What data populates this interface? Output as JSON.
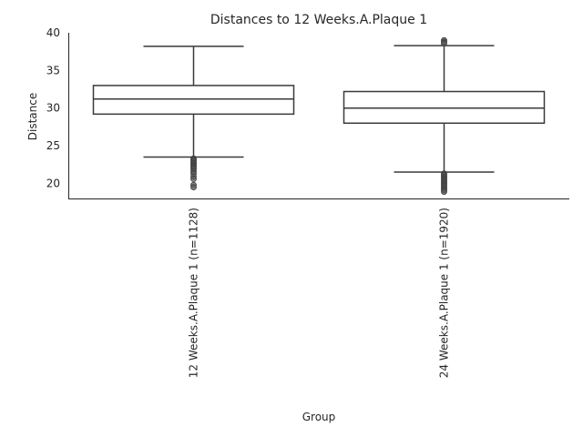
{
  "chart_data": {
    "type": "box",
    "title": "Distances to 12 Weeks.A.Plaque 1",
    "xlabel": "Group",
    "ylabel": "Distance",
    "ylim": [
      18,
      40
    ],
    "yticks": [
      20,
      25,
      30,
      35,
      40
    ],
    "grid": false,
    "categories": [
      "12 Weeks.A.Plaque 1 (n=1128)",
      "24 Weeks.A.Plaque 1 (n=1920)"
    ],
    "boxes": [
      {
        "whisker_low": 23.5,
        "q1": 29.2,
        "median": 31.2,
        "q3": 33.0,
        "whisker_high": 38.2,
        "fliers": [
          23.3,
          23.1,
          22.9,
          22.7,
          22.5,
          22.3,
          22.1,
          21.9,
          21.6,
          21.3,
          20.9,
          20.6,
          19.8,
          19.5
        ]
      },
      {
        "whisker_low": 21.5,
        "q1": 28.0,
        "median": 30.0,
        "q3": 32.2,
        "whisker_high": 38.3,
        "fliers": [
          39.0,
          38.8,
          38.6,
          21.3,
          21.1,
          20.9,
          20.7,
          20.5,
          20.3,
          20.1,
          19.9,
          19.7,
          19.5,
          19.3,
          19.1,
          18.9
        ]
      }
    ]
  }
}
